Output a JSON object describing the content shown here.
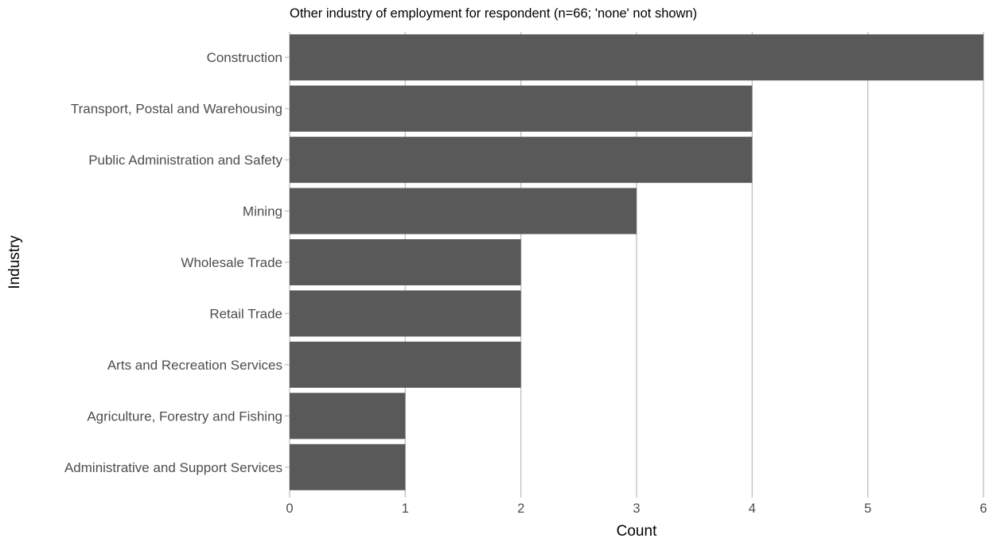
{
  "chart_data": {
    "type": "bar",
    "orientation": "horizontal",
    "title": "Other industry of employment for respondent (n=66; 'none' not shown)",
    "xlabel": "Count",
    "ylabel": "Industry",
    "categories": [
      "Construction",
      "Transport, Postal and Warehousing",
      "Public Administration and Safety",
      "Mining",
      "Wholesale Trade",
      "Retail Trade",
      "Arts and Recreation Services",
      "Agriculture, Forestry and Fishing",
      "Administrative and Support Services"
    ],
    "values": [
      6,
      4,
      4,
      3,
      2,
      2,
      2,
      1,
      1
    ],
    "xlim": [
      0,
      6
    ],
    "x_ticks": [
      "0",
      "1",
      "2",
      "3",
      "4",
      "5",
      "6"
    ],
    "grid": "vertical major gridlines",
    "legend": "none",
    "colors": {
      "bar": "#595959",
      "grid": "#c3c3c3",
      "axis_text": "#4d4d4d",
      "title_text": "#000000",
      "background": "#ffffff"
    }
  }
}
